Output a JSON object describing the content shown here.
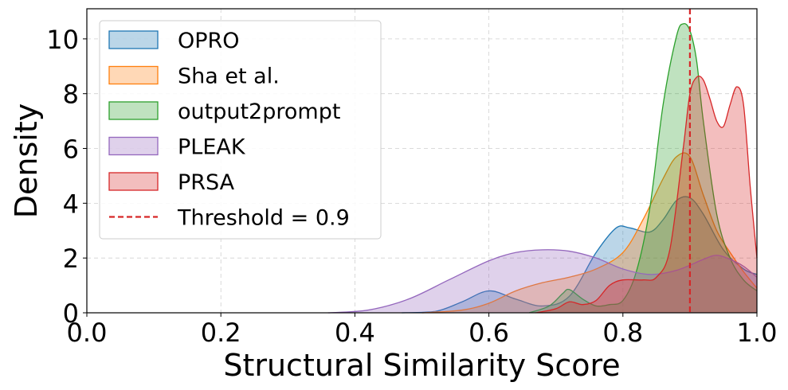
{
  "chart_data": {
    "type": "area",
    "title": "",
    "xlabel": "Structural Similarity Score",
    "ylabel": "Density",
    "xlim": [
      0.0,
      1.0
    ],
    "ylim": [
      0,
      11.1
    ],
    "xticks": [
      "0.0",
      "0.2",
      "0.4",
      "0.6",
      "0.8",
      "1.0"
    ],
    "yticks": [
      "0",
      "2",
      "4",
      "6",
      "8",
      "10"
    ],
    "grid": true,
    "legend_position": "top-left",
    "threshold": {
      "label": "Threshold = 0.9",
      "x": 0.9,
      "color": "#d62728"
    },
    "series": [
      {
        "name": "OPRO",
        "color": "#1f77b4",
        "points": [
          [
            0.47,
            0
          ],
          [
            0.52,
            0.05
          ],
          [
            0.56,
            0.4
          ],
          [
            0.6,
            0.8
          ],
          [
            0.64,
            0.5
          ],
          [
            0.68,
            0.25
          ],
          [
            0.72,
            0.6
          ],
          [
            0.76,
            2.2
          ],
          [
            0.79,
            3.1
          ],
          [
            0.81,
            3.1
          ],
          [
            0.84,
            2.95
          ],
          [
            0.86,
            3.4
          ],
          [
            0.88,
            4.1
          ],
          [
            0.9,
            4.2
          ],
          [
            0.92,
            3.6
          ],
          [
            0.95,
            2.3
          ],
          [
            0.98,
            1.6
          ],
          [
            1.0,
            1.4
          ]
        ]
      },
      {
        "name": "Sha et al.",
        "color": "#ff7f0e",
        "points": [
          [
            0.5,
            0
          ],
          [
            0.56,
            0.1
          ],
          [
            0.6,
            0.35
          ],
          [
            0.64,
            0.8
          ],
          [
            0.68,
            1.1
          ],
          [
            0.72,
            1.3
          ],
          [
            0.76,
            1.6
          ],
          [
            0.8,
            2.2
          ],
          [
            0.83,
            3.4
          ],
          [
            0.86,
            4.9
          ],
          [
            0.88,
            5.7
          ],
          [
            0.9,
            5.7
          ],
          [
            0.92,
            4.3
          ],
          [
            0.94,
            3.0
          ],
          [
            0.96,
            2.2
          ],
          [
            0.98,
            1.5
          ],
          [
            1.0,
            0.9
          ]
        ]
      },
      {
        "name": "output2prompt",
        "color": "#2ca02c",
        "points": [
          [
            0.66,
            0
          ],
          [
            0.69,
            0.25
          ],
          [
            0.71,
            0.7
          ],
          [
            0.72,
            0.85
          ],
          [
            0.74,
            0.5
          ],
          [
            0.76,
            0.25
          ],
          [
            0.78,
            0.3
          ],
          [
            0.8,
            0.45
          ],
          [
            0.82,
            1.5
          ],
          [
            0.84,
            3.8
          ],
          [
            0.86,
            7.6
          ],
          [
            0.88,
            10.1
          ],
          [
            0.89,
            10.55
          ],
          [
            0.9,
            10.3
          ],
          [
            0.91,
            9.2
          ],
          [
            0.92,
            7.0
          ],
          [
            0.94,
            3.6
          ],
          [
            0.96,
            2.0
          ],
          [
            0.98,
            1.2
          ],
          [
            1.0,
            0.8
          ]
        ]
      },
      {
        "name": "PLEAK",
        "color": "#9467bd",
        "points": [
          [
            0.36,
            0
          ],
          [
            0.42,
            0.1
          ],
          [
            0.48,
            0.5
          ],
          [
            0.54,
            1.2
          ],
          [
            0.6,
            1.9
          ],
          [
            0.64,
            2.2
          ],
          [
            0.68,
            2.3
          ],
          [
            0.72,
            2.25
          ],
          [
            0.76,
            2.0
          ],
          [
            0.8,
            1.6
          ],
          [
            0.84,
            1.4
          ],
          [
            0.88,
            1.55
          ],
          [
            0.92,
            1.95
          ],
          [
            0.94,
            2.1
          ],
          [
            0.96,
            1.95
          ],
          [
            0.98,
            1.7
          ],
          [
            1.0,
            1.3
          ]
        ]
      },
      {
        "name": "PRSA",
        "color": "#d62728",
        "points": [
          [
            0.67,
            0
          ],
          [
            0.7,
            0.15
          ],
          [
            0.72,
            0.4
          ],
          [
            0.74,
            0.3
          ],
          [
            0.76,
            0.45
          ],
          [
            0.78,
            1.0
          ],
          [
            0.8,
            1.2
          ],
          [
            0.83,
            1.2
          ],
          [
            0.85,
            1.3
          ],
          [
            0.87,
            2.3
          ],
          [
            0.89,
            6.0
          ],
          [
            0.9,
            8.0
          ],
          [
            0.91,
            8.6
          ],
          [
            0.92,
            8.5
          ],
          [
            0.93,
            7.8
          ],
          [
            0.94,
            7.0
          ],
          [
            0.95,
            6.8
          ],
          [
            0.96,
            7.6
          ],
          [
            0.97,
            8.25
          ],
          [
            0.98,
            7.6
          ],
          [
            0.99,
            4.6
          ],
          [
            1.0,
            2.0
          ]
        ]
      }
    ]
  }
}
